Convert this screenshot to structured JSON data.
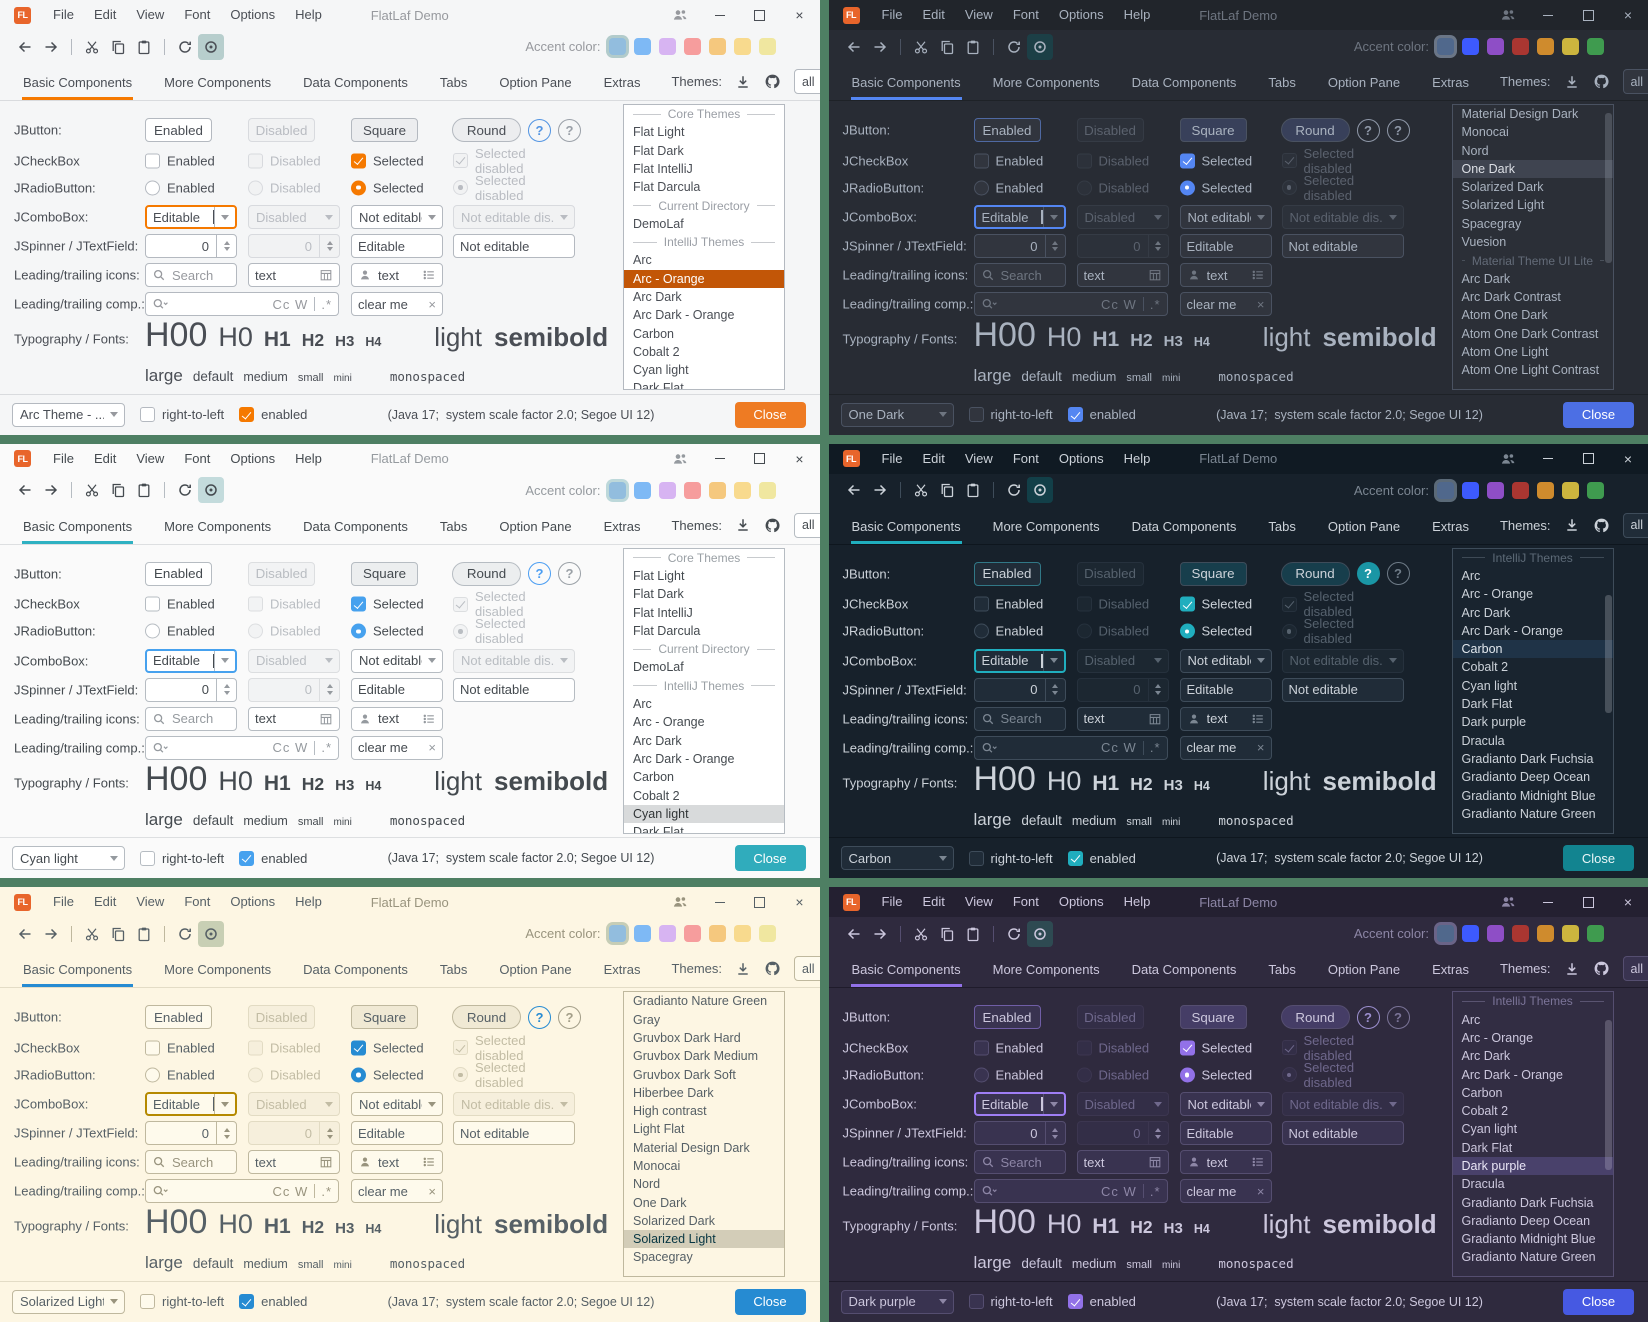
{
  "desktop": {
    "background": "#4e7f63"
  },
  "shared": {
    "titlebar": {
      "logo": "FL",
      "menu": [
        "File",
        "Edit",
        "View",
        "Font",
        "Options",
        "Help"
      ],
      "title": "FlatLaf Demo"
    },
    "toolbar": {
      "accent_label": "Accent color:",
      "buttons": [
        "back",
        "forward",
        "cut",
        "copy",
        "paste",
        "refresh",
        "show-hidden"
      ]
    },
    "tabs": [
      "Basic Components",
      "More Components",
      "Data Components",
      "Tabs",
      "Option Pane",
      "Extras"
    ],
    "selected_tab": "Basic Components",
    "themes_panel": {
      "label": "Themes:",
      "filter_value": "all"
    },
    "palettes": {
      "light": [
        "#92bdde",
        "#7eb9f5",
        "#d7b4f2",
        "#f69d9d",
        "#f5c87e",
        "#f8da8e",
        "#f0e7a0"
      ],
      "dark": [
        "#50688c",
        "#3d5afe",
        "#8e4ec6",
        "#aa3631",
        "#cf8b2d",
        "#ccb53e",
        "#3f9b4f"
      ]
    },
    "form": {
      "jbutton": {
        "label": "JButton:",
        "buttons": [
          "Enabled",
          "Disabled",
          "Square",
          "Round"
        ],
        "help": "?"
      },
      "jcheckbox": {
        "label": "JCheckBox",
        "items": [
          "Enabled",
          "Disabled",
          "Selected",
          "Selected disabled"
        ]
      },
      "jradio": {
        "label": "JRadioButton:",
        "items": [
          "Enabled",
          "Disabled",
          "Selected",
          "Selected disabled"
        ]
      },
      "jcombobox": {
        "label": "JComboBox:",
        "values": [
          "Editable",
          "Disabled",
          "Not editable",
          "Not editable dis..."
        ]
      },
      "jspinner": {
        "label": "JSpinner / JTextField:",
        "values": [
          "0",
          "0",
          "Editable",
          "Not editable"
        ]
      },
      "icons_row": {
        "label": "Leading/trailing icons:",
        "search_placeholder": "Search",
        "text1": "text",
        "text2": "text"
      },
      "comp_row": {
        "label": "Leading/trailing comp.:",
        "matchers": "Cc W",
        "regex": ".*",
        "clear_text": "clear me"
      },
      "typography": {
        "label": "Typography / Fonts:",
        "headings": [
          "H00",
          "H0",
          "H1",
          "H2",
          "H3",
          "H4"
        ],
        "weights": [
          "light",
          "semibold"
        ],
        "sizes": [
          "large",
          "default",
          "medium",
          "small",
          "mini"
        ],
        "mono": "monospaced"
      }
    },
    "statusbar": {
      "rtl_label": "right-to-left",
      "enabled_label": "enabled",
      "info": "(Java 17;  system scale factor 2.0; Segoe UI 12)",
      "close_label": "Close"
    }
  },
  "windows": [
    {
      "name": "arc-orange",
      "appearance": "light",
      "palette": "light",
      "statusbar_theme": "Arc Theme - ...",
      "selected_theme": "Arc - Orange",
      "scrollbar_visible": false,
      "flags": [],
      "colors": {
        "bg": "#f5f6f7",
        "titlebarBg": "#f5f6f7",
        "fg": "#4a4e55",
        "muted": "#97999e",
        "border": "#d8dade",
        "ctlBorder": "#b4b9c0",
        "ctlBg": "#ffffff",
        "disabledFg": "#b9bcc2",
        "disabledBg": "#f1f2f3",
        "accent": "#f57900",
        "select": "#f57900",
        "focus": "#f57900",
        "listBg": "#ffffff",
        "listSelBg": "#c25607",
        "listSelFg": "#ffffff",
        "headerFg": "#9a9ea5",
        "closeBg": "#ee7b23",
        "closeFg": "#ffffff",
        "eyeBg": "#b7cecd",
        "sep": "#d9dbde",
        "toggleBg": "#ecedef",
        "swatchRing": "#b2cbcb",
        "help1": "#5294e2",
        "help2": "#9aa0a8"
      },
      "themes_list": [
        {
          "h": "Core Themes"
        },
        {
          "l": "Flat Light"
        },
        {
          "l": "Flat Dark"
        },
        {
          "l": "Flat IntelliJ"
        },
        {
          "l": "Flat Darcula"
        },
        {
          "h": "Current Directory"
        },
        {
          "l": "DemoLaf"
        },
        {
          "h": "IntelliJ Themes"
        },
        {
          "l": "Arc"
        },
        {
          "l": "Arc - Orange",
          "sel": true
        },
        {
          "l": "Arc Dark"
        },
        {
          "l": "Arc Dark - Orange"
        },
        {
          "l": "Carbon"
        },
        {
          "l": "Cobalt 2"
        },
        {
          "l": "Cyan light"
        },
        {
          "l": "Dark Flat"
        }
      ]
    },
    {
      "name": "one-dark",
      "appearance": "dark",
      "palette": "dark",
      "statusbar_theme": "One Dark",
      "selected_theme": "One Dark",
      "scrollbar_visible": true,
      "flags": [],
      "colors": {
        "bg": "#282c34",
        "titlebarBg": "#21252b",
        "fg": "#a9b2bf",
        "muted": "#6e7580",
        "border": "#353b45",
        "ctlBorder": "#4a5261",
        "ctlBg": "#31353e",
        "disabledFg": "#5b626e",
        "disabledBg": "#2c313a",
        "accent": "#5486f2",
        "select": "#5486f2",
        "focus": "#5486f2",
        "listBg": "#2b2f37",
        "listSelBg": "#3f4450",
        "listSelFg": "#dcdfe5",
        "headerFg": "#636b78",
        "closeBg": "#4c6fe4",
        "closeFg": "#ffffff",
        "eyeBg": "#1c3f46",
        "sep": "#1e2227",
        "toggleBg": "#38405a",
        "swatchRing": "#6b7687",
        "help1": "#8f98a8",
        "help2": "#8f98a8"
      },
      "themes_list": [
        {
          "l": "Material Design Dark"
        },
        {
          "l": "Monocai"
        },
        {
          "l": "Nord"
        },
        {
          "l": "One Dark",
          "sel": true
        },
        {
          "l": "Solarized Dark"
        },
        {
          "l": "Solarized Light"
        },
        {
          "l": "Spacegray"
        },
        {
          "l": "Vuesion"
        },
        {
          "h": "Material Theme UI Lite"
        },
        {
          "l": "Arc Dark"
        },
        {
          "l": "Arc Dark Contrast"
        },
        {
          "l": "Atom One Dark"
        },
        {
          "l": "Atom One Dark Contrast"
        },
        {
          "l": "Atom One Light"
        },
        {
          "l": "Atom One Light Contrast"
        }
      ]
    },
    {
      "name": "cyan-light",
      "appearance": "light",
      "palette": "light",
      "statusbar_theme": "Cyan light",
      "selected_theme": "Cyan light",
      "scrollbar_visible": false,
      "flags": [],
      "colors": {
        "bg": "#fafafa",
        "titlebarBg": "#fafafa",
        "fg": "#444a4f",
        "muted": "#959a9f",
        "border": "#dcdee0",
        "ctlBorder": "#b6bcc2",
        "ctlBg": "#ffffff",
        "disabledFg": "#b9bdc2",
        "disabledBg": "#f2f3f4",
        "accent": "#2fb1c2",
        "select": "#46a1ee",
        "focus": "#46a1ee",
        "listBg": "#ffffff",
        "listSelBg": "#d8dadb",
        "listSelFg": "#303436",
        "headerFg": "#9aa0a5",
        "closeBg": "#30acbc",
        "closeFg": "#ffffff",
        "eyeBg": "#c3dbdc",
        "sep": "#dddfe1",
        "toggleBg": "#eceeef",
        "swatchRing": "#bdd8da",
        "help1": "#4a9df2",
        "help2": "#9aa0a6"
      },
      "themes_list": [
        {
          "h": "Core Themes"
        },
        {
          "l": "Flat Light"
        },
        {
          "l": "Flat Dark"
        },
        {
          "l": "Flat IntelliJ"
        },
        {
          "l": "Flat Darcula"
        },
        {
          "h": "Current Directory"
        },
        {
          "l": "DemoLaf"
        },
        {
          "h": "IntelliJ Themes"
        },
        {
          "l": "Arc"
        },
        {
          "l": "Arc - Orange"
        },
        {
          "l": "Arc Dark"
        },
        {
          "l": "Arc Dark - Orange"
        },
        {
          "l": "Carbon"
        },
        {
          "l": "Cobalt 2"
        },
        {
          "l": "Cyan light",
          "sel": true
        },
        {
          "l": "Dark Flat"
        }
      ]
    },
    {
      "name": "carbon",
      "appearance": "dark",
      "palette": "dark",
      "statusbar_theme": "Carbon",
      "selected_theme": "Carbon",
      "scrollbar_visible": true,
      "flags": [
        "help-filled"
      ],
      "colors": {
        "bg": "#17212b",
        "titlebarBg": "#101a23",
        "fg": "#ccd2d9",
        "muted": "#7b8692",
        "border": "#26313d",
        "ctlBorder": "#3e4c5a",
        "ctlBg": "#202c38",
        "disabledFg": "#56626e",
        "disabledBg": "#1c2731",
        "accent": "#20aebe",
        "select": "#20aebe",
        "focus": "#20aebe",
        "listBg": "#19242f",
        "listSelBg": "#1f3347",
        "listSelFg": "#e2e8ee",
        "headerFg": "#5d6a77",
        "closeBg": "#128490",
        "closeFg": "#eaf6f8",
        "eyeBg": "#123f48",
        "sep": "#0e161e",
        "toggleBg": "#173e4c",
        "swatchRing": "#5b6a78",
        "help1": "#1a96a5",
        "help2": "#6f7c88"
      },
      "themes_list": [
        {
          "h": "IntelliJ Themes"
        },
        {
          "l": "Arc"
        },
        {
          "l": "Arc - Orange"
        },
        {
          "l": "Arc Dark"
        },
        {
          "l": "Arc Dark - Orange"
        },
        {
          "l": "Carbon",
          "sel": true
        },
        {
          "l": "Cobalt 2"
        },
        {
          "l": "Cyan light"
        },
        {
          "l": "Dark Flat"
        },
        {
          "l": "Dark purple"
        },
        {
          "l": "Dracula"
        },
        {
          "l": "Gradianto Dark Fuchsia"
        },
        {
          "l": "Gradianto Deep Ocean"
        },
        {
          "l": "Gradianto Midnight Blue"
        },
        {
          "l": "Gradianto Nature Green"
        }
      ]
    },
    {
      "name": "solarized-light",
      "appearance": "light",
      "palette": "light",
      "statusbar_theme": "Solarized Light",
      "selected_theme": "Solarized Light",
      "scrollbar_visible": false,
      "flags": [],
      "colors": {
        "bg": "#fdf6e3",
        "titlebarBg": "#fdf6e3",
        "fg": "#566066",
        "muted": "#99947e",
        "border": "#e2dbc3",
        "ctlBorder": "#bfb89e",
        "ctlBg": "#fefaec",
        "disabledFg": "#c2bca4",
        "disabledBg": "#f6efdc",
        "accent": "#268bd2",
        "select": "#268bd2",
        "focus": "#b58900",
        "listBg": "#fdf6e3",
        "listSelBg": "#d3cdb8",
        "listSelFg": "#073642",
        "headerFg": "#a59f87",
        "closeBg": "#268bd2",
        "closeFg": "#ffffff",
        "eyeBg": "#c8cfb4",
        "sep": "#e3dcc6",
        "toggleBg": "#f0e9d4",
        "swatchRing": "#c6cdb6",
        "help1": "#268bd2",
        "help2": "#a39e88"
      },
      "themes_list": [
        {
          "l": "Gradianto Nature Green"
        },
        {
          "l": "Gray"
        },
        {
          "l": "Gruvbox Dark Hard"
        },
        {
          "l": "Gruvbox Dark Medium"
        },
        {
          "l": "Gruvbox Dark Soft"
        },
        {
          "l": "Hiberbee Dark"
        },
        {
          "l": "High contrast"
        },
        {
          "l": "Light Flat"
        },
        {
          "l": "Material Design Dark"
        },
        {
          "l": "Monocai"
        },
        {
          "l": "Nord"
        },
        {
          "l": "One Dark"
        },
        {
          "l": "Solarized Dark"
        },
        {
          "l": "Solarized Light",
          "sel": true
        },
        {
          "l": "Spacegray"
        }
      ]
    },
    {
      "name": "dark-purple",
      "appearance": "dark",
      "palette": "dark",
      "statusbar_theme": "Dark purple",
      "selected_theme": "Dark purple",
      "scrollbar_visible": true,
      "flags": [],
      "colors": {
        "bg": "#2f2a3e",
        "titlebarBg": "#242031",
        "fg": "#ccc7dd",
        "muted": "#8d86a6",
        "border": "#3c3650",
        "ctlBorder": "#554e70",
        "ctlBg": "#393350",
        "disabledFg": "#6f688c",
        "disabledBg": "#332e47",
        "accent": "#9271e8",
        "select": "#9271e8",
        "focus": "#9f7ef5",
        "listBg": "#322d43",
        "listSelBg": "#49416b",
        "listSelFg": "#e9e5f6",
        "headerFg": "#7b7498",
        "closeBg": "#4659e2",
        "closeFg": "#ffffff",
        "eyeBg": "#2e4a52",
        "sep": "#1f1b2b",
        "toggleBg": "#453d66",
        "swatchRing": "#6a6488",
        "help1": "#9d90d0",
        "help2": "#7b7498"
      },
      "themes_list": [
        {
          "h": "IntelliJ Themes"
        },
        {
          "l": "Arc"
        },
        {
          "l": "Arc - Orange"
        },
        {
          "l": "Arc Dark"
        },
        {
          "l": "Arc Dark - Orange"
        },
        {
          "l": "Carbon"
        },
        {
          "l": "Cobalt 2"
        },
        {
          "l": "Cyan light"
        },
        {
          "l": "Dark Flat"
        },
        {
          "l": "Dark purple",
          "sel": true
        },
        {
          "l": "Dracula"
        },
        {
          "l": "Gradianto Dark Fuchsia"
        },
        {
          "l": "Gradianto Deep Ocean"
        },
        {
          "l": "Gradianto Midnight Blue"
        },
        {
          "l": "Gradianto Nature Green"
        }
      ]
    }
  ]
}
